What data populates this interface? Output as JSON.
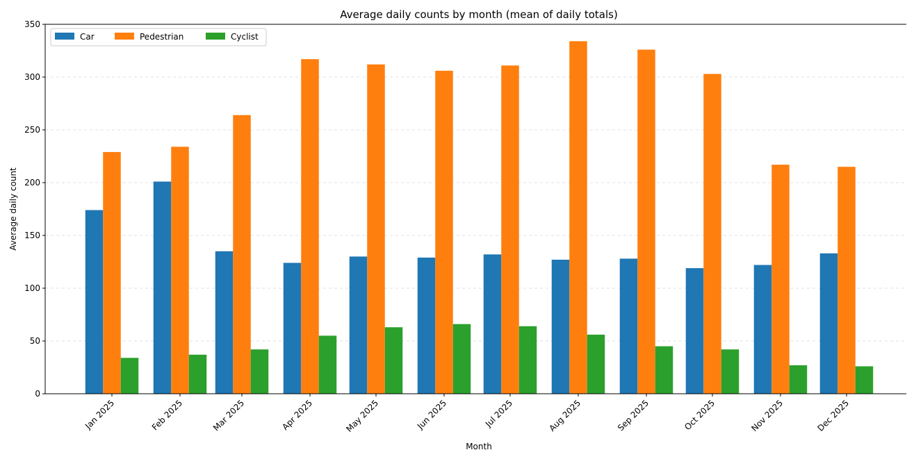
{
  "chart_data": {
    "type": "bar",
    "title": "Average daily counts by month (mean of daily totals)",
    "xlabel": "Month",
    "ylabel": "Average daily count",
    "categories": [
      "Jan 2025",
      "Feb 2025",
      "Mar 2025",
      "Apr 2025",
      "May 2025",
      "Jun 2025",
      "Jul 2025",
      "Aug 2025",
      "Sep 2025",
      "Oct 2025",
      "Nov 2025",
      "Dec 2025"
    ],
    "series": [
      {
        "name": "Car",
        "color": "#1f77b4",
        "values": [
          174,
          201,
          135,
          124,
          130,
          129,
          132,
          127,
          128,
          119,
          122,
          133
        ]
      },
      {
        "name": "Pedestrian",
        "color": "#ff7f0e",
        "values": [
          229,
          234,
          264,
          317,
          312,
          306,
          311,
          334,
          326,
          303,
          217,
          215
        ]
      },
      {
        "name": "Cyclist",
        "color": "#2ca02c",
        "values": [
          34,
          37,
          42,
          55,
          63,
          66,
          64,
          56,
          45,
          42,
          27,
          26
        ]
      }
    ],
    "ylim": [
      0,
      350
    ],
    "yticks": [
      0,
      50,
      100,
      150,
      200,
      250,
      300,
      350
    ],
    "grid": "y-dashed",
    "legend_position": "top-left"
  }
}
